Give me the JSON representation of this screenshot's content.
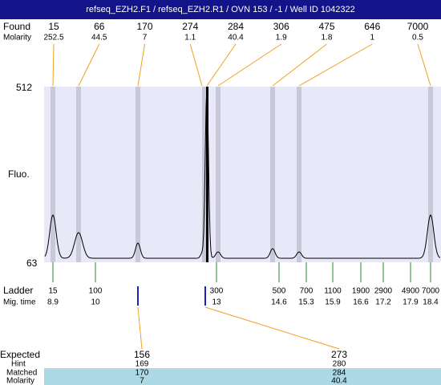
{
  "header": {
    "title": "refseq_EZH2.F1 / refseq_EZH2.R1 / OVN 153 / -1 / Well ID 1042322"
  },
  "found": {
    "label": "Found",
    "molarity_label": "Molarity",
    "peaks": [
      {
        "size": "15",
        "molarity": "252.5"
      },
      {
        "size": "66",
        "molarity": "44.5"
      },
      {
        "size": "170",
        "molarity": "7"
      },
      {
        "size": "274",
        "molarity": "1.1"
      },
      {
        "size": "284",
        "molarity": "40.4"
      },
      {
        "size": "306",
        "molarity": "1.9"
      },
      {
        "size": "475",
        "molarity": "1.8"
      },
      {
        "size": "646",
        "molarity": "1"
      },
      {
        "size": "7000",
        "molarity": "0.5"
      }
    ]
  },
  "axis": {
    "top": "512",
    "bottom": "63",
    "label": "Fluo."
  },
  "ladder": {
    "label": "Ladder",
    "time_label": "Mig. time",
    "entries": [
      {
        "size": "15",
        "time": "8.9"
      },
      {
        "size": "100",
        "time": "10"
      },
      {
        "size": "300",
        "time": "13"
      },
      {
        "size": "500",
        "time": "14.6"
      },
      {
        "size": "700",
        "time": "15.3"
      },
      {
        "size": "1100",
        "time": "15.9"
      },
      {
        "size": "1900",
        "time": "16.6"
      },
      {
        "size": "2900",
        "time": "17.2"
      },
      {
        "size": "4900",
        "time": "17.9"
      },
      {
        "size": "7000",
        "time": "18.4"
      }
    ]
  },
  "expected": {
    "labels": {
      "expected": "Expected",
      "hint": "Hint",
      "matched": "Matched",
      "molarity": "Molarity"
    },
    "columns": [
      {
        "expected": "156",
        "hint": "169",
        "matched": "170",
        "molarity": "7"
      },
      {
        "expected": "273",
        "hint": "280",
        "matched": "284",
        "molarity": "40.4"
      }
    ]
  }
}
